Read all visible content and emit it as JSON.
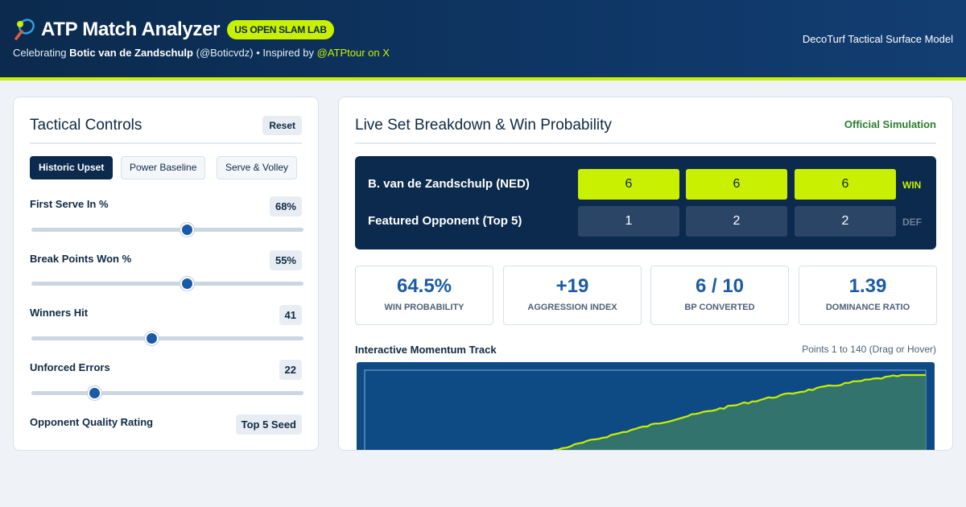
{
  "header": {
    "title": "ATP Match Analyzer",
    "badge": "US OPEN SLAM LAB",
    "subtitle_prefix": "Celebrating",
    "player_full": "Botic van de Zandschulp",
    "handle": "(@Boticvdz)",
    "inspired": "• Inspired by",
    "inspired_link": "@ATPtour on X",
    "surface_model": "DecoTurf Tactical Surface Model",
    "icon": "tennis-racket-icon",
    "accent_color": "#c8f000"
  },
  "controls": {
    "title": "Tactical Controls",
    "reset_label": "Reset",
    "presets": [
      {
        "label": "Historic Upset",
        "active": true
      },
      {
        "label": "Power Baseline",
        "active": false
      },
      {
        "label": "Serve & Volley",
        "active": false
      }
    ],
    "sliders": [
      {
        "label": "First Serve In %",
        "value": "68%",
        "fraction": 0.57
      },
      {
        "label": "Break Points Won %",
        "value": "55%",
        "fraction": 0.57
      },
      {
        "label": "Winners Hit",
        "value": "41",
        "fraction": 0.44
      },
      {
        "label": "Unforced Errors",
        "value": "22",
        "fraction": 0.23
      }
    ],
    "quality": {
      "label": "Opponent Quality Rating",
      "value": "Top 5 Seed"
    }
  },
  "breakdown": {
    "title": "Live Set Breakdown & Win Probability",
    "official": "Official Simulation",
    "players": [
      {
        "name": "B. van de Zandschulp (NED)",
        "sets": [
          "6",
          "6",
          "6"
        ],
        "result": "WIN",
        "winner": true
      },
      {
        "name": "Featured Opponent (Top 5)",
        "sets": [
          "1",
          "2",
          "2"
        ],
        "result": "DEF",
        "winner": false
      }
    ],
    "stats": [
      {
        "value": "64.5%",
        "label": "WIN PROBABILITY"
      },
      {
        "value": "+19",
        "label": "AGGRESSION INDEX"
      },
      {
        "value": "6 / 10",
        "label": "BP CONVERTED"
      },
      {
        "value": "1.39",
        "label": "DOMINANCE RATIO"
      }
    ],
    "momentum": {
      "title": "Interactive Momentum Track",
      "range": "Points 1 to 140 (Drag or Hover)",
      "points_total": 140,
      "line_color": "#c8f000",
      "fill_color": "#3a7a6a"
    }
  }
}
